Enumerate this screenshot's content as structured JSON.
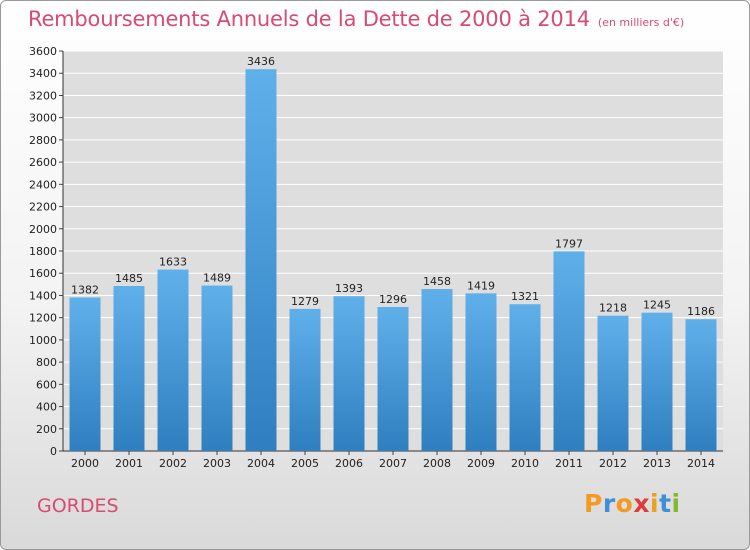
{
  "chart_data": {
    "type": "bar",
    "title": "Remboursements Annuels de la Dette de 2000 à 2014",
    "subtitle": "(en milliers d'€)",
    "categories": [
      "2000",
      "2001",
      "2002",
      "2003",
      "2004",
      "2005",
      "2006",
      "2007",
      "2008",
      "2009",
      "2010",
      "2011",
      "2012",
      "2013",
      "2014"
    ],
    "values": [
      1382,
      1485,
      1633,
      1489,
      3436,
      1279,
      1393,
      1296,
      1458,
      1419,
      1321,
      1797,
      1218,
      1245,
      1186
    ],
    "xlabel": "",
    "ylabel": "",
    "ylim": [
      0,
      3600
    ],
    "yticks": [
      0,
      200,
      400,
      600,
      800,
      1000,
      1200,
      1400,
      1600,
      1800,
      2000,
      2200,
      2400,
      2600,
      2800,
      3000,
      3200,
      3400,
      3600
    ],
    "grid": true,
    "legend": "none",
    "bar_color": "#4aa0dd"
  },
  "footer": {
    "town": "GORDES",
    "logo": "Proxiti"
  },
  "colors": {
    "accent": "#d94a72",
    "logo_letters": [
      "#f39a1f",
      "#3f8fd6",
      "#f39a1f",
      "#e03a3a",
      "#e8a21c",
      "#3f8fd6",
      "#86b82f"
    ]
  }
}
